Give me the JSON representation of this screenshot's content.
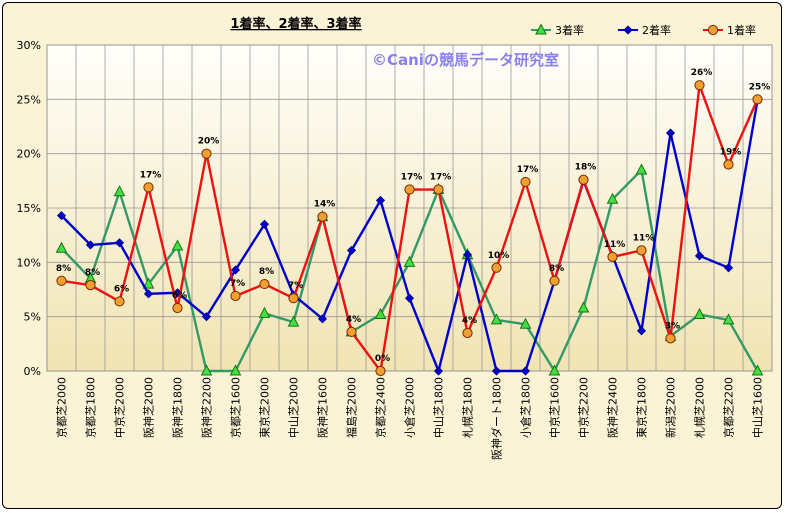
{
  "chart_data": {
    "type": "line",
    "title": "1着率、2着率、3着率",
    "watermark": "©Caniの競馬データ研究室",
    "xlabel": "",
    "ylabel": "",
    "ylim": [
      0,
      30
    ],
    "yticks": [
      "0%",
      "5%",
      "10%",
      "15%",
      "20%",
      "25%",
      "30%"
    ],
    "grid": true,
    "legend_position": "top-right",
    "categories": [
      "京都芝2000",
      "京都芝1800",
      "中京芝2000",
      "阪神芝2000",
      "阪神芝1800",
      "阪神芝2200",
      "京都芝1600",
      "東京芝2000",
      "中山芝2000",
      "阪神芝1600",
      "福島芝2000",
      "京都芝2400",
      "小倉芝2000",
      "中山芝1800",
      "札幌芝1800",
      "阪神ダート1800",
      "小倉芝1800",
      "中京芝1600",
      "中京芝2200",
      "阪神芝2400",
      "東京芝1800",
      "新潟芝2000",
      "札幌芝2000",
      "京都芝2200",
      "中山芝1600"
    ],
    "series": [
      {
        "name": "3着率",
        "color": "#339966",
        "marker": "triangle",
        "values": [
          11.3,
          8.5,
          16.5,
          8.0,
          11.5,
          0,
          0,
          5.3,
          4.5,
          14.2,
          3.6,
          5.2,
          10.0,
          16.7,
          10.7,
          4.7,
          4.3,
          0,
          5.8,
          15.8,
          18.5,
          3.2,
          5.2,
          4.7,
          0
        ]
      },
      {
        "name": "2着率",
        "color": "#0000cc",
        "marker": "diamond",
        "values": [
          14.3,
          11.6,
          11.8,
          7.1,
          7.2,
          5.0,
          9.3,
          13.5,
          7.0,
          4.8,
          11.1,
          15.7,
          6.7,
          0,
          10.7,
          0,
          0,
          8.3,
          17.5,
          10.6,
          3.7,
          21.9,
          10.6,
          9.5,
          24.9
        ]
      },
      {
        "name": "1着率",
        "color": "#ee1111",
        "marker": "circle",
        "values": [
          8.3,
          7.9,
          6.4,
          16.9,
          5.8,
          20.0,
          6.9,
          8.0,
          6.7,
          14.2,
          3.6,
          0,
          16.7,
          16.7,
          3.5,
          9.5,
          17.4,
          8.3,
          17.6,
          10.5,
          11.1,
          3.0,
          26.3,
          19.0,
          25.0
        ],
        "data_labels": [
          "8%",
          "8%",
          "6%",
          "17%",
          "6%",
          "20%",
          "7%",
          "8%",
          "7%",
          "14%",
          "4%",
          "0%",
          "17%",
          "17%",
          "4%",
          "10%",
          "17%",
          "8%",
          "18%",
          "11%",
          "11%",
          "3%",
          "26%",
          "19%",
          "25%"
        ]
      }
    ]
  }
}
